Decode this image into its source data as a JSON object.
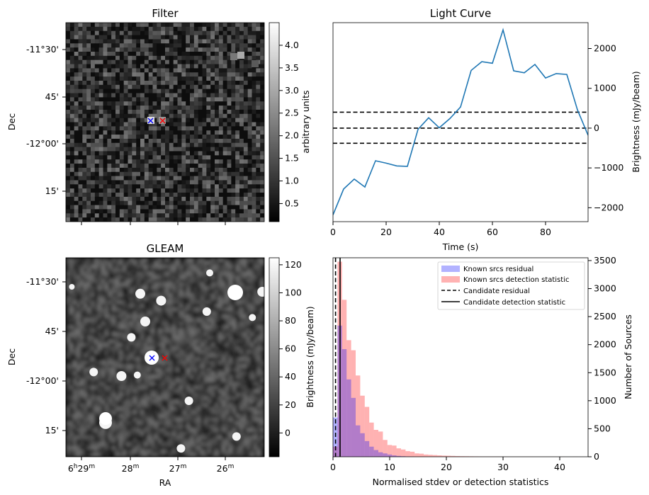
{
  "panels": {
    "filter": {
      "title": "Filter",
      "ylabel": "Dec",
      "yticks": [
        "-11°30'",
        "45'",
        "-12°00'",
        "15'"
      ],
      "colorbar": {
        "label": "arbitrary units",
        "ticks": [
          "0.5",
          "1.0",
          "1.5",
          "2.0",
          "2.5",
          "3.0",
          "3.5",
          "4.0"
        ],
        "range": [
          0.1,
          4.5
        ]
      }
    },
    "gleam": {
      "title": "GLEAM",
      "ylabel": "Dec",
      "xlabel": "RA",
      "yticks": [
        "-11°30'",
        "45'",
        "-12°00'",
        "15'"
      ],
      "xticks": [
        {
          "base": "6",
          "s1": "h",
          "mid": "29",
          "s2": "m"
        },
        {
          "base": "28",
          "s2": "m"
        },
        {
          "base": "27",
          "s2": "m"
        },
        {
          "base": "26",
          "s2": "m"
        }
      ],
      "colorbar": {
        "label": "Brightness (mJy/beam)",
        "ticks": [
          "0",
          "20",
          "40",
          "60",
          "80",
          "100",
          "120"
        ],
        "range": [
          -17,
          125
        ]
      },
      "sources": [
        {
          "ra": 0.71,
          "dec": -11.65
        },
        {
          "ra": 0.375,
          "dec": -11.56
        },
        {
          "ra": 0.48,
          "dec": -11.595
        },
        {
          "ra": 0.4,
          "dec": -11.7
        },
        {
          "ra": 0.99,
          "dec": -11.55
        },
        {
          "ra": 0.725,
          "dec": -11.455
        },
        {
          "ra": 0.28,
          "dec": -11.975
        },
        {
          "ra": 0.03,
          "dec": -11.525
        },
        {
          "ra": 0.2,
          "dec": -12.21
        },
        {
          "ra": 0.58,
          "dec": -12.34
        },
        {
          "ra": 0.14,
          "dec": -11.955
        },
        {
          "ra": 0.36,
          "dec": -11.97
        },
        {
          "ra": 0.85,
          "dec": -11.57
        },
        {
          "ra": 0.94,
          "dec": -11.68
        },
        {
          "ra": 0.62,
          "dec": -12.1
        },
        {
          "ra": 0.33,
          "dec": -11.78
        },
        {
          "ra": 0.86,
          "dec": -12.28
        }
      ]
    },
    "lightcurve": {
      "title": "Light Curve",
      "xlabel": "Time (s)",
      "ylabel": "Brightness (mJy/beam)",
      "color": "#1f77b4"
    },
    "histogram": {
      "xlabel": "Normalised stdev or detection statistics",
      "ylabel": "Number of Sources",
      "legend": [
        "Known srcs residual",
        "Known srcs detection statistic",
        "Candidate residual",
        "Candidate detection statistic"
      ],
      "colors": {
        "residual": "#0000ff",
        "detection": "#ff0000"
      }
    }
  },
  "markers": {
    "blue": "#0000ff",
    "red": "#ff0000"
  },
  "chart_data": [
    {
      "type": "heatmap",
      "title": "Filter",
      "ylabel": "Dec",
      "colorbar_label": "arbitrary units",
      "clim": [
        0.1,
        4.5
      ],
      "dec_ticks": [
        -11.5,
        -11.75,
        -12.0,
        -12.25
      ],
      "markers": [
        {
          "symbol": "x",
          "color": "blue",
          "ra_fraction": 0.43,
          "dec": -11.86
        },
        {
          "symbol": "x",
          "color": "red",
          "ra_fraction": 0.49,
          "dec": -11.86
        }
      ]
    },
    {
      "type": "line",
      "title": "Light Curve",
      "xlabel": "Time (s)",
      "ylabel": "Brightness (mJy/beam)",
      "xlim": [
        0,
        96
      ],
      "ylim": [
        -2350,
        2650
      ],
      "xticks": [
        0,
        20,
        40,
        60,
        80
      ],
      "yticks": [
        -2000,
        -1000,
        0,
        1000,
        2000
      ],
      "x": [
        0,
        4,
        8,
        12,
        16,
        20,
        24,
        28,
        32,
        36,
        40,
        44,
        48,
        52,
        56,
        60,
        64,
        68,
        72,
        76,
        80,
        84,
        88,
        92,
        96
      ],
      "y": [
        -2180,
        -1530,
        -1280,
        -1480,
        -820,
        -880,
        -950,
        -960,
        -30,
        260,
        10,
        240,
        530,
        1450,
        1670,
        1630,
        2470,
        1440,
        1390,
        1600,
        1260,
        1370,
        1350,
        460,
        -180
      ],
      "hlines": [
        {
          "y": 400,
          "style": "dashed"
        },
        {
          "y": 0,
          "style": "dashed"
        },
        {
          "y": -380,
          "style": "dashed"
        }
      ]
    },
    {
      "type": "heatmap",
      "title": "GLEAM",
      "xlabel": "RA",
      "ylabel": "Dec",
      "colorbar_label": "Brightness (mJy/beam)",
      "clim": [
        -17,
        125
      ],
      "dec_ticks": [
        -11.5,
        -11.75,
        -12.0,
        -12.25
      ],
      "ra_ticks": [
        "6h29m",
        "28m",
        "27m",
        "26m"
      ],
      "markers": [
        {
          "symbol": "x",
          "color": "blue",
          "ra_fraction": 0.43,
          "dec": -11.86
        },
        {
          "symbol": "x",
          "color": "red",
          "ra_fraction": 0.49,
          "dec": -11.86
        }
      ]
    },
    {
      "type": "bar",
      "xlabel": "Normalised stdev or detection statistics",
      "ylabel": "Number of Sources",
      "xlim": [
        0,
        45
      ],
      "ylim": [
        0,
        3550
      ],
      "xticks": [
        0,
        10,
        20,
        30,
        40
      ],
      "yticks": [
        0,
        500,
        1000,
        1500,
        2000,
        2500,
        3000,
        3500
      ],
      "bin_width": 0.8,
      "series": [
        {
          "name": "Known srcs residual",
          "color": "#0000ff",
          "alpha": 0.3,
          "bin_starts": [
            0.0,
            0.8,
            1.6,
            2.4,
            3.2,
            4.0,
            4.8,
            5.6,
            6.4,
            7.2,
            8.0,
            8.8,
            9.6,
            10.4,
            11.2,
            12.0,
            12.8,
            13.6
          ],
          "values": [
            700,
            2340,
            1920,
            1380,
            1050,
            560,
            420,
            280,
            180,
            120,
            80,
            60,
            40,
            25,
            15,
            10,
            6,
            3
          ]
        },
        {
          "name": "Known srcs detection statistic",
          "color": "#ff0000",
          "alpha": 0.3,
          "bin_starts": [
            0.0,
            0.8,
            1.6,
            2.4,
            3.2,
            4.0,
            4.8,
            5.6,
            6.4,
            7.2,
            8.0,
            8.8,
            9.6,
            10.4,
            11.2,
            12.0,
            12.8,
            13.6,
            14.4,
            15.2,
            16.0,
            16.8,
            17.6,
            18.4,
            19.2,
            20.0,
            20.8,
            21.6,
            22.4,
            23.2,
            24.0,
            24.8,
            25.6,
            26.4,
            27.2,
            28.0,
            28.8,
            29.6,
            30.4,
            31.2,
            32.0,
            32.8,
            33.6,
            34.4,
            35.2,
            36.0,
            36.8,
            37.6,
            38.4,
            39.2,
            40.0,
            40.8,
            41.6,
            42.4,
            43.2,
            44.0
          ],
          "values": [
            180,
            3480,
            2800,
            2080,
            1900,
            1450,
            1090,
            890,
            610,
            480,
            450,
            300,
            210,
            200,
            150,
            130,
            100,
            90,
            60,
            55,
            40,
            35,
            30,
            25,
            20,
            18,
            15,
            12,
            10,
            9,
            8,
            7,
            6,
            5,
            5,
            4,
            4,
            3,
            3,
            3,
            2,
            2,
            2,
            2,
            1,
            1,
            1,
            1,
            1,
            1,
            1,
            0,
            0,
            1,
            0,
            0
          ]
        }
      ],
      "vlines": [
        {
          "name": "Candidate residual",
          "x": 0.45,
          "style": "dashed"
        },
        {
          "name": "Candidate detection statistic",
          "x": 1.25,
          "style": "solid"
        }
      ]
    }
  ]
}
